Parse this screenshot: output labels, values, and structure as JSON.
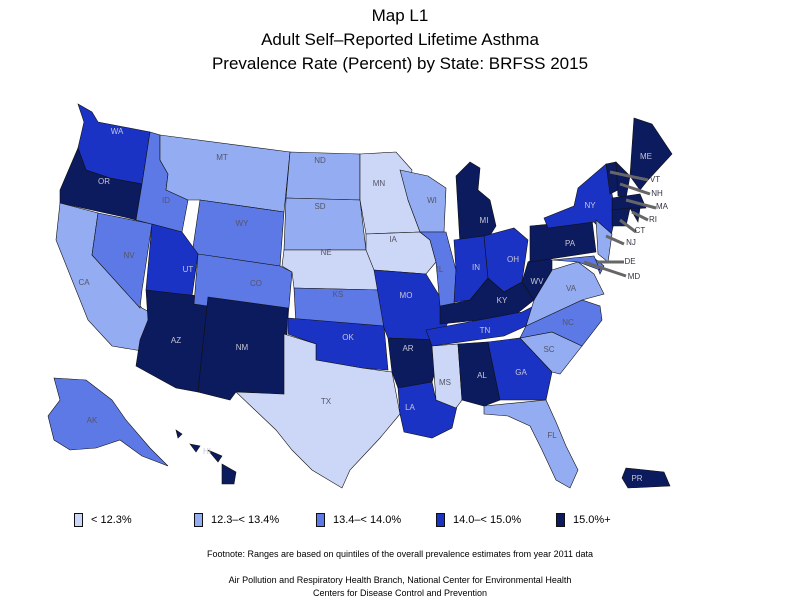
{
  "title": {
    "line1": "Map L1",
    "line2": "Adult Self–Reported Lifetime Asthma",
    "line3": "Prevalence Rate (Percent) by State: BRFSS 2015"
  },
  "colors": {
    "q1": "#ccd6f6",
    "q2": "#93acf2",
    "q3": "#5d79e6",
    "q4": "#1b33c4",
    "q5": "#0c1a5e",
    "outline": "#111111",
    "leader": "#666666"
  },
  "legend": [
    {
      "key": "q1",
      "label": "< 12.3%"
    },
    {
      "key": "q2",
      "label": "12.3–< 13.4%"
    },
    {
      "key": "q3",
      "label": "13.4–< 14.0%"
    },
    {
      "key": "q4",
      "label": "14.0–< 15.0%"
    },
    {
      "key": "q5",
      "label": "15.0%+"
    }
  ],
  "states": [
    {
      "abbr": "WA",
      "class": "q4"
    },
    {
      "abbr": "OR",
      "class": "q5"
    },
    {
      "abbr": "CA",
      "class": "q2"
    },
    {
      "abbr": "NV",
      "class": "q3"
    },
    {
      "abbr": "ID",
      "class": "q3"
    },
    {
      "abbr": "MT",
      "class": "q2"
    },
    {
      "abbr": "WY",
      "class": "q3"
    },
    {
      "abbr": "UT",
      "class": "q4"
    },
    {
      "abbr": "AZ",
      "class": "q5"
    },
    {
      "abbr": "CO",
      "class": "q3"
    },
    {
      "abbr": "NM",
      "class": "q5"
    },
    {
      "abbr": "ND",
      "class": "q2"
    },
    {
      "abbr": "SD",
      "class": "q2"
    },
    {
      "abbr": "NE",
      "class": "q1"
    },
    {
      "abbr": "KS",
      "class": "q3"
    },
    {
      "abbr": "OK",
      "class": "q4"
    },
    {
      "abbr": "TX",
      "class": "q1"
    },
    {
      "abbr": "MN",
      "class": "q1"
    },
    {
      "abbr": "IA",
      "class": "q1"
    },
    {
      "abbr": "MO",
      "class": "q4"
    },
    {
      "abbr": "AR",
      "class": "q5"
    },
    {
      "abbr": "LA",
      "class": "q4"
    },
    {
      "abbr": "WI",
      "class": "q2"
    },
    {
      "abbr": "IL",
      "class": "q3"
    },
    {
      "abbr": "MI",
      "class": "q5"
    },
    {
      "abbr": "IN",
      "class": "q4"
    },
    {
      "abbr": "OH",
      "class": "q4"
    },
    {
      "abbr": "KY",
      "class": "q5"
    },
    {
      "abbr": "TN",
      "class": "q4"
    },
    {
      "abbr": "MS",
      "class": "q1"
    },
    {
      "abbr": "AL",
      "class": "q5"
    },
    {
      "abbr": "GA",
      "class": "q4"
    },
    {
      "abbr": "FL",
      "class": "q2"
    },
    {
      "abbr": "SC",
      "class": "q2"
    },
    {
      "abbr": "NC",
      "class": "q3"
    },
    {
      "abbr": "VA",
      "class": "q2"
    },
    {
      "abbr": "WV",
      "class": "q5"
    },
    {
      "abbr": "PA",
      "class": "q5"
    },
    {
      "abbr": "NY",
      "class": "q4"
    },
    {
      "abbr": "ME",
      "class": "q5"
    },
    {
      "abbr": "AK",
      "class": "q3"
    },
    {
      "abbr": "HI",
      "class": "q5"
    },
    {
      "abbr": "PR",
      "class": "q5"
    },
    {
      "abbr": "VT",
      "class": "q5"
    },
    {
      "abbr": "NH",
      "class": "q5"
    },
    {
      "abbr": "MA",
      "class": "q5"
    },
    {
      "abbr": "RI",
      "class": "q5"
    },
    {
      "abbr": "CT",
      "class": "q5"
    },
    {
      "abbr": "NJ",
      "class": "q2"
    },
    {
      "abbr": "DE",
      "class": "q3"
    },
    {
      "abbr": "MD",
      "class": "q3"
    }
  ],
  "footnote": "Footnote: Ranges are based on quintiles of the overall prevalence estimates from year 2011 data",
  "credit_line1": "Air Pollution and Respiratory Health Branch, National Center for Environmental Health",
  "credit_line2": "Centers for Disease Control and Prevention"
}
